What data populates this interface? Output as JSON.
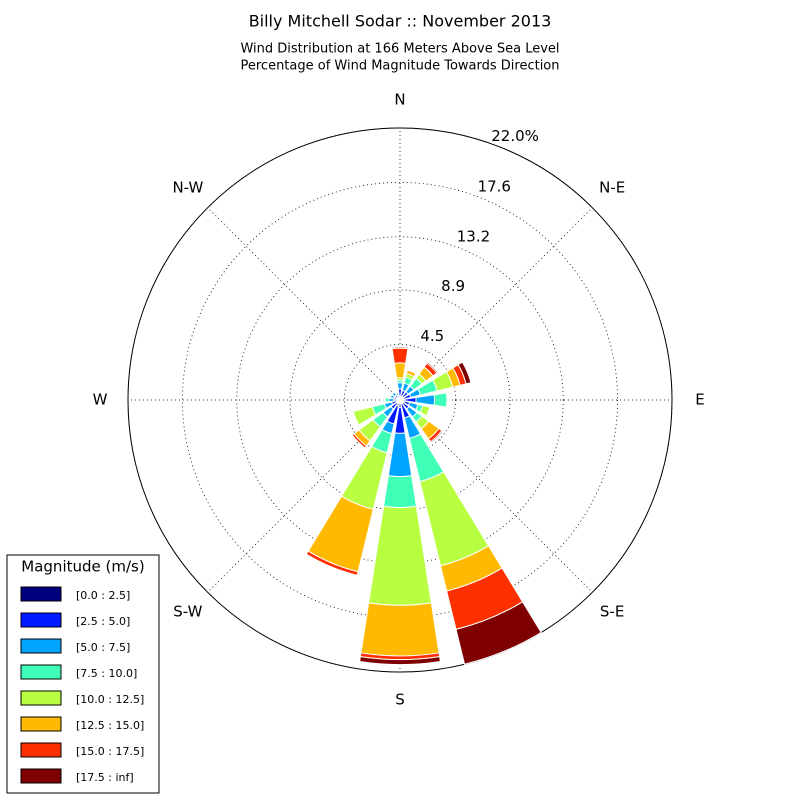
{
  "chart_data": {
    "type": "windrose",
    "title": "Billy Mitchell Sodar :: November 2013",
    "subtitle": [
      "Wind Distribution at 166 Meters Above Sea Level",
      "Percentage of Wind Magnitude Towards Direction"
    ],
    "categories": [
      "N",
      null,
      "N-E",
      null,
      "E",
      null,
      "S-E",
      null,
      "S",
      null,
      "S-W",
      null,
      "W",
      null,
      "N-W",
      null
    ],
    "ylim": [
      0,
      22.0
    ],
    "yticks": [
      4.5,
      8.9,
      13.2,
      17.6,
      {
        "value": 22.0,
        "label": "22.0%"
      }
    ],
    "grid": true,
    "legend_title": "Magnitude (m/s)",
    "legend_position": "lower-left",
    "series": [
      {
        "name": "[0.0 : 2.5]",
        "color": "#00007f",
        "values": [
          0.3,
          0.3,
          0.3,
          0.3,
          0.4,
          0.3,
          0.3,
          0.3,
          0.6,
          0.5,
          0.3,
          0.2,
          0.2,
          0.2,
          0.2,
          0.2
        ]
      },
      {
        "name": "[2.5 : 5.0]",
        "color": "#0019ff",
        "values": [
          0.6,
          0.5,
          0.5,
          0.6,
          0.9,
          0.5,
          0.6,
          1.2,
          2.1,
          1.5,
          0.6,
          0.5,
          0.3,
          0.3,
          0.3,
          0.2
        ]
      },
      {
        "name": "[5.0 : 7.5]",
        "color": "#00a4ff",
        "values": [
          0.5,
          0.6,
          0.6,
          0.8,
          1.5,
          0.7,
          0.8,
          1.7,
          3.5,
          0.8,
          0.8,
          0.6,
          0.4,
          0.3,
          0.3,
          0.2
        ]
      },
      {
        "name": "[7.5 : 10.0]",
        "color": "#40ffb7",
        "values": [
          0.2,
          0.5,
          0.8,
          1.4,
          1.0,
          0.4,
          0.5,
          3.6,
          2.5,
          1.6,
          1.0,
          1.0,
          0.3,
          0.1,
          0,
          0.1
        ]
      },
      {
        "name": "[10.0 : 12.5]",
        "color": "#b7ff40",
        "values": [
          0.2,
          0.3,
          0.4,
          1.3,
          0.1,
          0.6,
          0.7,
          7.0,
          7.9,
          4.7,
          1.4,
          1.6,
          0.1,
          0,
          0,
          0
        ]
      },
      {
        "name": "[12.5 : 15.0]",
        "color": "#ffb900",
        "values": [
          1.2,
          0.3,
          0.7,
          0.6,
          0,
          0,
          1.0,
          2.1,
          4.1,
          5.2,
          0.5,
          0,
          0,
          0,
          0,
          0
        ]
      },
      {
        "name": "[15.0 : 17.5]",
        "color": "#ff3000",
        "values": [
          1.2,
          0,
          0.4,
          0.5,
          0,
          0,
          0.3,
          3.2,
          0.3,
          0.3,
          0.2,
          0,
          0,
          0,
          0,
          0
        ]
      },
      {
        "name": "[17.5 : inf]",
        "color": "#7f0000",
        "values": [
          0.1,
          0,
          0.1,
          0.4,
          0,
          0,
          0.1,
          2.9,
          0.4,
          0,
          0,
          0,
          0,
          0,
          0,
          0
        ]
      }
    ]
  }
}
